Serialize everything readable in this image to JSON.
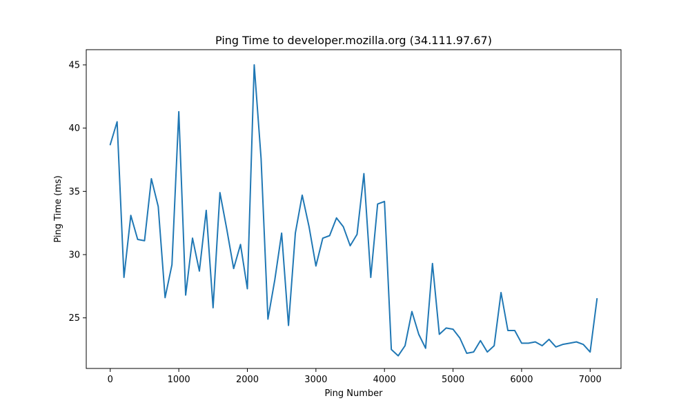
{
  "chart_data": {
    "type": "line",
    "title": "Ping Time to developer.mozilla.org (34.111.97.67)",
    "xlabel": "Ping Number",
    "ylabel": "Ping Time (ms)",
    "xlim": [
      -350,
      7450
    ],
    "ylim": [
      21.0,
      46.2
    ],
    "xticks": [
      0,
      1000,
      2000,
      3000,
      4000,
      5000,
      6000,
      7000
    ],
    "yticks": [
      25,
      30,
      35,
      40,
      45
    ],
    "grid": false,
    "legend": "none",
    "series": [
      {
        "color": "#1f77b4",
        "x": [
          0,
          100,
          200,
          300,
          400,
          500,
          600,
          700,
          800,
          900,
          1000,
          1100,
          1200,
          1300,
          1400,
          1500,
          1600,
          1700,
          1800,
          1900,
          2000,
          2100,
          2200,
          2300,
          2400,
          2500,
          2600,
          2700,
          2800,
          2900,
          3000,
          3100,
          3200,
          3300,
          3400,
          3500,
          3600,
          3700,
          3800,
          3900,
          4000,
          4100,
          4200,
          4300,
          4400,
          4500,
          4600,
          4700,
          4800,
          4900,
          5000,
          5100,
          5200,
          5300,
          5400,
          5500,
          5600,
          5700,
          5800,
          5900,
          6000,
          6100,
          6200,
          6300,
          6400,
          6500,
          6600,
          6700,
          6800,
          6900,
          7000,
          7100
        ],
        "y": [
          38.7,
          40.5,
          28.2,
          33.1,
          31.2,
          31.1,
          36.0,
          33.8,
          26.6,
          29.2,
          41.3,
          26.8,
          31.3,
          28.7,
          33.5,
          25.8,
          34.9,
          32.0,
          28.9,
          30.8,
          27.3,
          45.0,
          37.6,
          24.9,
          28.0,
          31.7,
          24.4,
          31.7,
          34.7,
          32.2,
          29.1,
          31.3,
          31.5,
          32.9,
          32.2,
          30.7,
          31.6,
          36.4,
          28.2,
          34.0,
          34.2,
          22.5,
          22.0,
          22.8,
          25.5,
          23.7,
          22.6,
          29.3,
          23.7,
          24.2,
          24.1,
          23.4,
          22.2,
          22.3,
          23.2,
          22.3,
          22.8,
          27.0,
          24.0,
          24.0,
          23.0,
          23.0,
          23.1,
          22.8,
          23.3,
          22.7,
          22.9,
          23.0,
          23.1,
          22.9,
          22.3,
          26.5
        ]
      }
    ]
  }
}
